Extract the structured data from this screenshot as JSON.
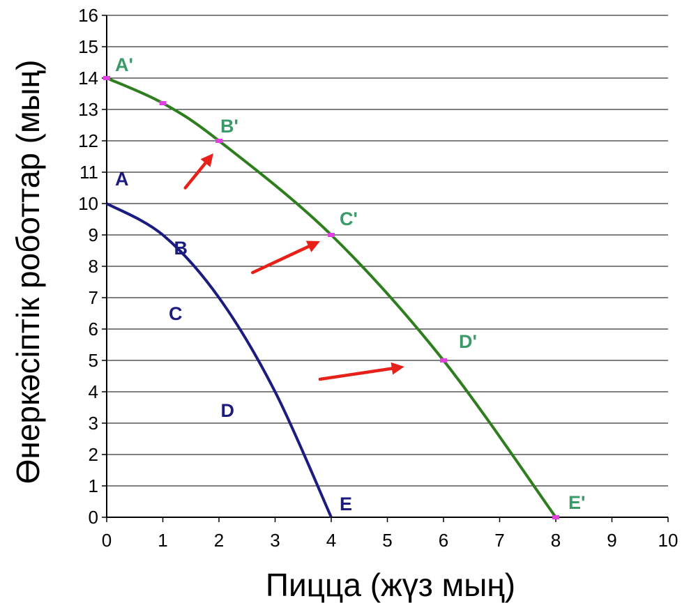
{
  "chart_data": {
    "type": "line",
    "title": "",
    "xlabel": "Пицца (жүз мың)",
    "ylabel": "Өнеркәсіптік роботтар (мың)",
    "xlim": [
      0,
      10
    ],
    "ylim": [
      0,
      16
    ],
    "xticks": [
      "0",
      "1",
      "2",
      "3",
      "4",
      "5",
      "6",
      "7",
      "8",
      "9",
      "10"
    ],
    "yticks": [
      "0",
      "1",
      "2",
      "3",
      "4",
      "5",
      "6",
      "7",
      "8",
      "9",
      "10",
      "11",
      "12",
      "13",
      "14",
      "15",
      "16"
    ],
    "grid": "horizontal",
    "series": [
      {
        "color": "#1c1c80",
        "points": [
          [
            0,
            10
          ],
          [
            1,
            9
          ],
          [
            2,
            7
          ],
          [
            3,
            4
          ],
          [
            4,
            0
          ]
        ],
        "labels": [
          {
            "text": "A",
            "x": 0,
            "y": 10
          },
          {
            "text": "B",
            "x": 1,
            "y": 9
          },
          {
            "text": "C",
            "x": 2,
            "y": 7
          },
          {
            "text": "D",
            "x": 3,
            "y": 4
          },
          {
            "text": "E",
            "x": 4,
            "y": 0
          }
        ]
      },
      {
        "color": "#2e7d1e",
        "marker_color": "#e040e0",
        "points": [
          [
            0,
            14
          ],
          [
            1,
            13.2
          ],
          [
            2,
            12
          ],
          [
            4,
            9
          ],
          [
            6,
            5
          ],
          [
            8,
            0
          ]
        ],
        "labels": [
          {
            "text": "A'",
            "x": 0,
            "y": 14
          },
          {
            "text": "B'",
            "x": 2,
            "y": 12
          },
          {
            "text": "C'",
            "x": 4,
            "y": 9
          },
          {
            "text": "D'",
            "x": 6,
            "y": 5
          },
          {
            "text": "E'",
            "x": 8,
            "y": 0
          }
        ]
      }
    ],
    "label_colors": {
      "inner": "#1c1c80",
      "outer": "#3a9a6a"
    },
    "arrows": {
      "color": "#e8201a",
      "items": [
        {
          "from": [
            1.4,
            10.5
          ],
          "to": [
            1.9,
            11.6
          ]
        },
        {
          "from": [
            2.6,
            7.8
          ],
          "to": [
            3.8,
            8.8
          ]
        },
        {
          "from": [
            3.8,
            4.4
          ],
          "to": [
            5.3,
            4.8
          ]
        }
      ]
    }
  }
}
